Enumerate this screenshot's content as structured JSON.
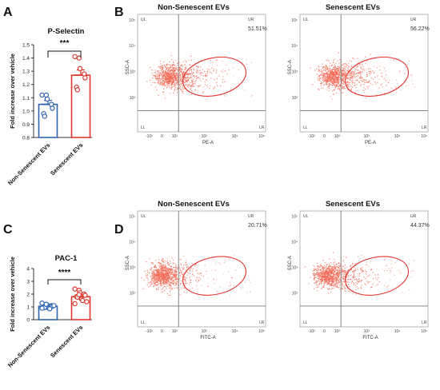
{
  "panels": {
    "A": "A",
    "B": "B",
    "C": "C",
    "D": "D"
  },
  "colors": {
    "non_senescent": "#2f63b0",
    "senescent": "#e0382d",
    "flow_dots": "#f26b57",
    "ellipse": "#e3322b",
    "axis": "#333333",
    "gate": "#777777"
  },
  "chart_data": [
    {
      "panel": "A",
      "type": "bar",
      "title": "P-Selectin",
      "ylabel": "Fold increase over vehicle",
      "categories": [
        "Non-Senescent EVs",
        "Senescent EVs"
      ],
      "values": [
        1.05,
        1.27
      ],
      "sem": [
        0.03,
        0.04
      ],
      "ylim": [
        0.8,
        1.5
      ],
      "yticks": [
        "0.8",
        "0.9",
        "1.0",
        "1.1",
        "1.2",
        "1.3",
        "1.4",
        "1.5"
      ],
      "points": [
        [
          1.12,
          1.12,
          1.09,
          1.05,
          1.02,
          0.98,
          0.96
        ],
        [
          1.41,
          1.4,
          1.32,
          1.28,
          1.25,
          1.18,
          1.16
        ]
      ],
      "significance": "***"
    },
    {
      "panel": "C",
      "type": "bar",
      "title": "PAC-1",
      "ylabel": "Fold increase over vehicle",
      "categories": [
        "Non-Senescent EVs",
        "Senescent EVs"
      ],
      "values": [
        1.05,
        1.8
      ],
      "sem": [
        0.06,
        0.12
      ],
      "ylim": [
        0,
        4
      ],
      "yticks": [
        "0",
        "1",
        "2",
        "3",
        "4"
      ],
      "points": [
        [
          1.3,
          1.2,
          1.15,
          1.1,
          1.05,
          1.0,
          0.95,
          0.9,
          0.85,
          1.1,
          0.9,
          1.2
        ],
        [
          2.4,
          2.3,
          2.1,
          2.0,
          1.9,
          1.8,
          1.75,
          1.6,
          1.5,
          1.4,
          1.25,
          1.95
        ]
      ],
      "significance": "****"
    },
    {
      "panel": "B",
      "type": "scatter",
      "title": "Non-Senescent EVs",
      "xlabel": "PE-A",
      "ylabel": "SSC-A",
      "quadrants": {
        "ul": "UL",
        "ur": "UR",
        "ll": "LL",
        "lr": "LR"
      },
      "ur_percent": "51.51%",
      "xticks": [
        "-10²",
        "0",
        "10²",
        "10³",
        "10⁴",
        "10⁵"
      ],
      "yticks": [
        "10²",
        "10³",
        "10⁴",
        "10⁵"
      ]
    },
    {
      "panel": "B",
      "type": "scatter",
      "title": "Senescent EVs",
      "xlabel": "PE-A",
      "ylabel": "SSC-A",
      "quadrants": {
        "ul": "UL",
        "ur": "UR",
        "ll": "LL",
        "lr": "LR"
      },
      "ur_percent": "56.22%",
      "xticks": [
        "-10²",
        "0",
        "10²",
        "10³",
        "10⁴",
        "10⁵"
      ],
      "yticks": [
        "10²",
        "10³",
        "10⁴",
        "10⁵"
      ]
    },
    {
      "panel": "D",
      "type": "scatter",
      "title": "Non-Senescent EVs",
      "xlabel": "FITC-A",
      "ylabel": "SSC-A",
      "quadrants": {
        "ul": "UL",
        "ur": "UR",
        "ll": "LL",
        "lr": "LR"
      },
      "ur_percent": "20.71%",
      "xticks": [
        "-10²",
        "0",
        "10²",
        "10³",
        "10⁴",
        "10⁵"
      ],
      "yticks": [
        "10²",
        "10³",
        "10⁴",
        "10⁵"
      ]
    },
    {
      "panel": "D",
      "type": "scatter",
      "title": "Senescent EVs",
      "xlabel": "FITC-A",
      "ylabel": "SSC-A",
      "quadrants": {
        "ul": "UL",
        "ur": "UR",
        "ll": "LL",
        "lr": "LR"
      },
      "ur_percent": "44.37%",
      "xticks": [
        "-10²",
        "0",
        "10²",
        "10³",
        "10⁴",
        "10⁵"
      ],
      "yticks": [
        "10²",
        "10³",
        "10⁴",
        "10⁵"
      ]
    }
  ]
}
